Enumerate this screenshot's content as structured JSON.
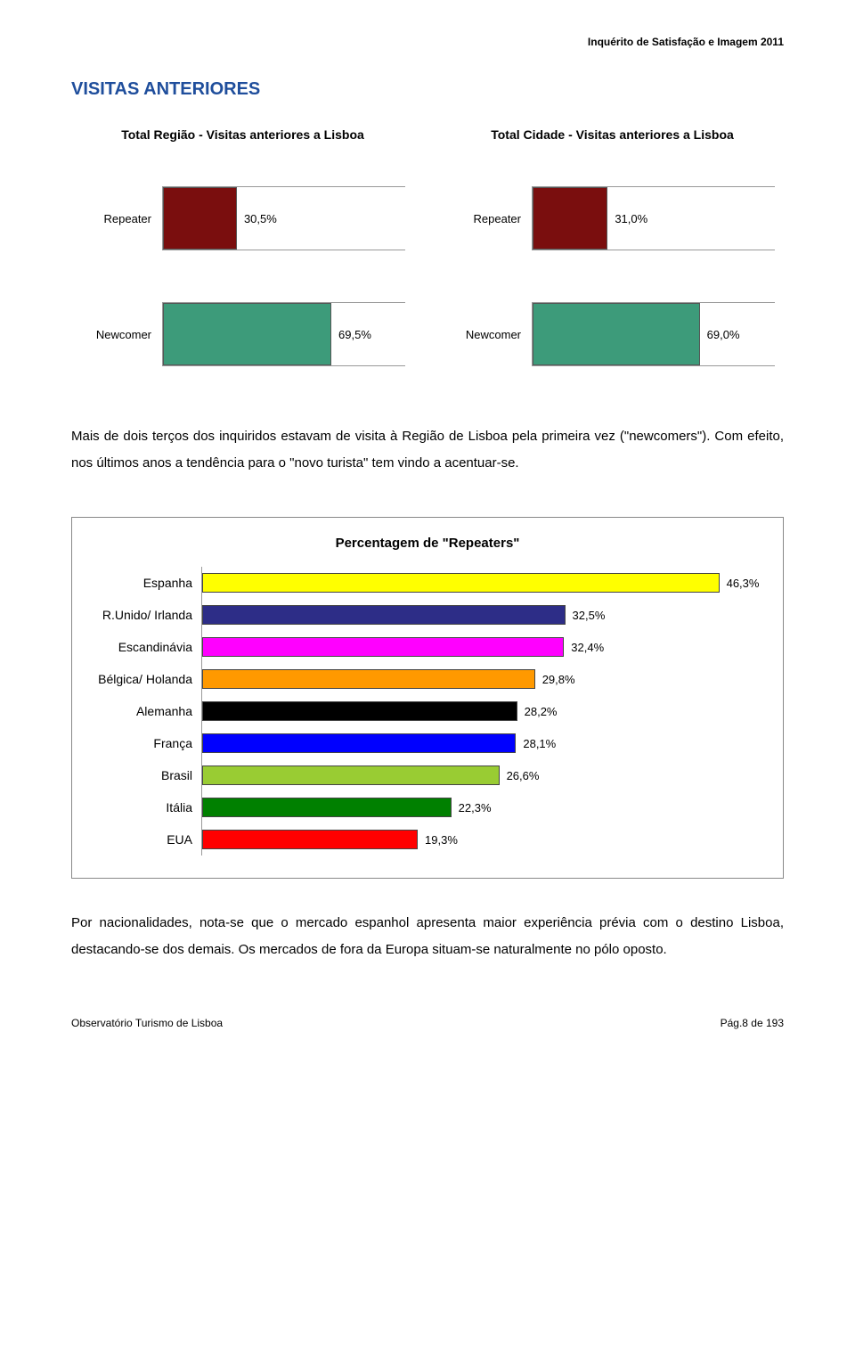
{
  "header": {
    "right_text": "Inquérito  de Satisfação e Imagem  2011"
  },
  "title": "VISITAS ANTERIORES",
  "twin": {
    "left": {
      "title": "Total Região - Visitas anteriores a Lisboa",
      "rows": [
        {
          "label": "Repeater",
          "value": "30,5%",
          "width_pct": 30.5,
          "color": "#7a0e0e"
        },
        {
          "label": "Newcomer",
          "value": "69,5%",
          "width_pct": 69.5,
          "color": "#3d9b7a"
        }
      ]
    },
    "right": {
      "title": "Total Cidade  - Visitas anteriores a Lisboa",
      "rows": [
        {
          "label": "Repeater",
          "value": "31,0%",
          "width_pct": 31.0,
          "color": "#7a0e0e"
        },
        {
          "label": "Newcomer",
          "value": "69,0%",
          "width_pct": 69.0,
          "color": "#3d9b7a"
        }
      ]
    }
  },
  "para1": "Mais de dois terços dos inquiridos estavam de visita à Região de Lisboa pela primeira vez (\"newcomers\"). Com efeito, nos últimos anos a tendência para o \"novo turista\" tem vindo a acentuar-se.",
  "repeaters_chart": {
    "title": "Percentagem de \"Repeaters\"",
    "max": 50,
    "rows": [
      {
        "label": "Espanha",
        "value": "46,3%",
        "pct": 46.3,
        "color": "#ffff00"
      },
      {
        "label": "R.Unido/ Irlanda",
        "value": "32,5%",
        "pct": 32.5,
        "color": "#2d2d87"
      },
      {
        "label": "Escandinávia",
        "value": "32,4%",
        "pct": 32.4,
        "color": "#ff00ff"
      },
      {
        "label": "Bélgica/ Holanda",
        "value": "29,8%",
        "pct": 29.8,
        "color": "#ff9900"
      },
      {
        "label": "Alemanha",
        "value": "28,2%",
        "pct": 28.2,
        "color": "#000000"
      },
      {
        "label": "França",
        "value": "28,1%",
        "pct": 28.1,
        "color": "#0000ff"
      },
      {
        "label": "Brasil",
        "value": "26,6%",
        "pct": 26.6,
        "color": "#99cc33"
      },
      {
        "label": "Itália",
        "value": "22,3%",
        "pct": 22.3,
        "color": "#008000"
      },
      {
        "label": "EUA",
        "value": "19,3%",
        "pct": 19.3,
        "color": "#ff0000"
      }
    ]
  },
  "para2": "Por nacionalidades, nota-se que o mercado espanhol apresenta maior experiência prévia com o destino Lisboa, destacando-se dos demais. Os mercados de fora da Europa situam-se naturalmente no pólo oposto.",
  "footer": {
    "left": "Observatório Turismo de Lisboa",
    "right": "Pág.8 de 193"
  }
}
